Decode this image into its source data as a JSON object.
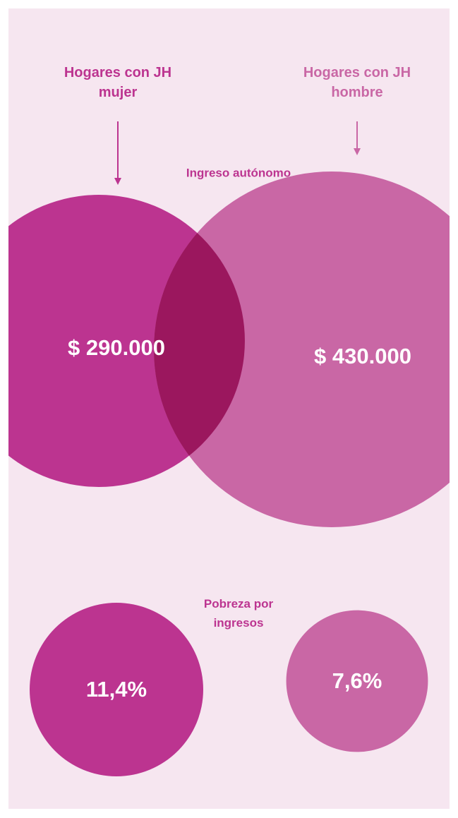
{
  "chart_data": [
    {
      "type": "bubble",
      "title": "Ingreso autónomo",
      "series": [
        {
          "name": "Hogares con JH mujer",
          "color": "#bc3490",
          "values": [
            290000
          ],
          "value_labels": [
            "$ 290.000"
          ]
        },
        {
          "name": "Hogares con JH hombre",
          "color": "#c967a5",
          "values": [
            430000
          ],
          "value_labels": [
            "$ 430.000"
          ]
        }
      ]
    },
    {
      "type": "bubble",
      "title": "Pobreza por ingresos",
      "series": [
        {
          "color": "#bc3490",
          "values": [
            11.4
          ],
          "value_labels": [
            "11,4%"
          ]
        },
        {
          "color": "#c967a5",
          "values": [
            7.6
          ],
          "value_labels": [
            "7,6%"
          ]
        }
      ]
    }
  ]
}
